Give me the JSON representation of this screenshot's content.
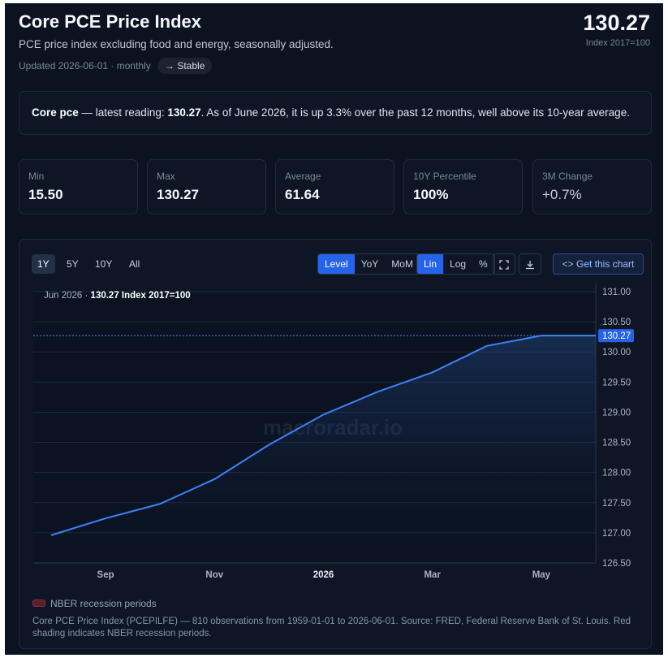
{
  "header": {
    "title": "Core PCE Price Index",
    "subtitle": "PCE price index excluding food and energy, seasonally adjusted.",
    "updated": "Updated 2026-06-01 · monthly",
    "trend_badge": "→ Stable",
    "latest_value": "130.27",
    "unit": "Index 2017=100"
  },
  "summary": {
    "series_name": "Core pce",
    "lead": " — latest reading: ",
    "value": "130.27",
    "rest": ". As of June 2026, it is up 3.3% over the past 12 months, well above its 10-year average."
  },
  "stats": [
    {
      "label": "Min",
      "value": "15.50"
    },
    {
      "label": "Max",
      "value": "130.27"
    },
    {
      "label": "Average",
      "value": "61.64"
    },
    {
      "label": "10Y Percentile",
      "value": "100%"
    },
    {
      "label": "3M Change",
      "value": "+0.7%"
    }
  ],
  "toolbar": {
    "ranges": [
      "1Y",
      "5Y",
      "10Y",
      "All"
    ],
    "active_range": "1Y",
    "transforms": [
      "Level",
      "YoY",
      "MoM"
    ],
    "active_transform": "Level",
    "scales": [
      "Lin",
      "Log",
      "%"
    ],
    "active_scale": "Lin",
    "fullscreen_icon": "expand-icon",
    "download_icon": "download-icon",
    "get_chart_label": "Get this chart",
    "code_icon": "code-icon"
  },
  "chart_data": {
    "type": "area",
    "x": [
      "2025-08",
      "2025-09",
      "2025-10",
      "2025-11",
      "2025-12",
      "2026-01",
      "2026-02",
      "2026-03",
      "2026-04",
      "2026-05",
      "2026-06"
    ],
    "values": [
      126.96,
      127.24,
      127.48,
      127.89,
      128.46,
      128.96,
      129.34,
      129.66,
      130.1,
      130.27,
      130.27
    ],
    "x_tick_labels": [
      {
        "x": "2025-09",
        "label": "Sep"
      },
      {
        "x": "2025-11",
        "label": "Nov"
      },
      {
        "x": "2026-01",
        "label": "2026"
      },
      {
        "x": "2026-03",
        "label": "Mar"
      },
      {
        "x": "2026-05",
        "label": "May"
      }
    ],
    "y_ticks": [
      "131.00",
      "130.50",
      "130.00",
      "129.50",
      "129.00",
      "128.50",
      "128.00",
      "127.50",
      "127.00",
      "126.50"
    ],
    "ylim": [
      126.5,
      131.0
    ],
    "latest_label": "130.27",
    "crosshair_label_prefix": "Jun 2026 · ",
    "crosshair_label_value": "130.27 Index 2017=100",
    "watermark": "macroradar.io",
    "grid": true,
    "line_color": "#3b82f6"
  },
  "legend": {
    "label": "NBER recession periods",
    "color": "#8a3040"
  },
  "footnote": "Core PCE Price Index (PCEPILFE) — 810 observations from 1959-01-01 to 2026-06-01. Source: FRED, Federal Reserve Bank of St. Louis. Red shading indicates NBER recession periods."
}
